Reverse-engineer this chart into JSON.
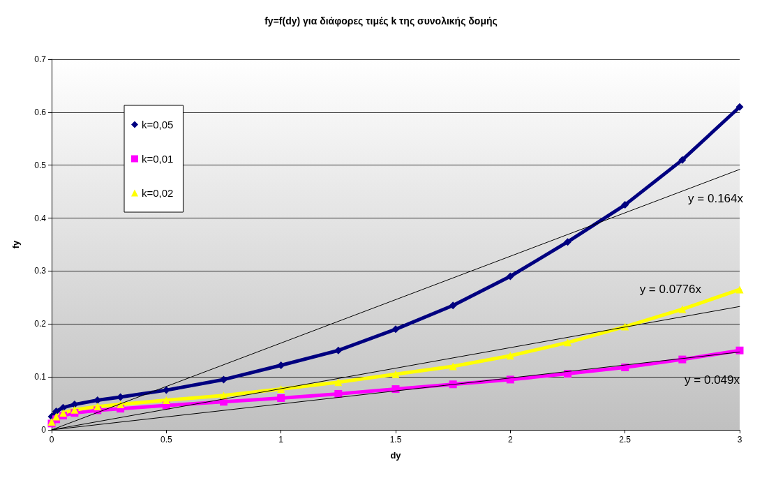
{
  "chart_data": {
    "type": "line",
    "title": "fy=f(dy) για διάφορες τιμές k της συνολικής δομής",
    "xlabel": "dy",
    "ylabel": "fy",
    "x": [
      0,
      0.02,
      0.05,
      0.1,
      0.2,
      0.3,
      0.5,
      0.75,
      1,
      1.25,
      1.5,
      1.75,
      2,
      2.25,
      2.5,
      2.75,
      3
    ],
    "series": [
      {
        "name": "k=0,05",
        "color": "#000080",
        "marker": "diamond",
        "values": [
          0.025,
          0.035,
          0.042,
          0.048,
          0.056,
          0.062,
          0.075,
          0.095,
          0.122,
          0.15,
          0.19,
          0.235,
          0.29,
          0.355,
          0.425,
          0.51,
          0.61
        ]
      },
      {
        "name": "k=0,01",
        "color": "#ff00ff",
        "marker": "square",
        "values": [
          0.012,
          0.02,
          0.027,
          0.032,
          0.037,
          0.04,
          0.046,
          0.053,
          0.06,
          0.068,
          0.077,
          0.086,
          0.095,
          0.106,
          0.118,
          0.133,
          0.15
        ]
      },
      {
        "name": "k=0,02",
        "color": "#ffff00",
        "marker": "triangle",
        "values": [
          0.015,
          0.025,
          0.032,
          0.038,
          0.044,
          0.048,
          0.056,
          0.065,
          0.077,
          0.09,
          0.105,
          0.12,
          0.14,
          0.165,
          0.195,
          0.228,
          0.265
        ]
      },
      {
        "type": "line",
        "color": "#000000",
        "marker": "none",
        "values": [
          0,
          null,
          null,
          null,
          null,
          null,
          null,
          null,
          null,
          null,
          null,
          null,
          null,
          null,
          null,
          null,
          0.492
        ]
      },
      {
        "type": "line",
        "color": "#000000",
        "marker": "none",
        "values": [
          0,
          null,
          null,
          null,
          null,
          null,
          null,
          null,
          null,
          null,
          null,
          null,
          null,
          null,
          null,
          null,
          0.233
        ]
      },
      {
        "type": "line",
        "color": "#000000",
        "marker": "none",
        "values": [
          0,
          null,
          null,
          null,
          null,
          null,
          null,
          null,
          null,
          null,
          null,
          null,
          null,
          null,
          null,
          null,
          0.147
        ]
      }
    ],
    "annotations": [
      "y = 0.164x",
      "y = 0.0776x",
      "y = 0.049x"
    ],
    "xlim": [
      0,
      3
    ],
    "xticks": [
      0,
      0.5,
      1,
      1.5,
      2,
      2.5,
      3
    ],
    "ylim": [
      0,
      0.7
    ],
    "yticks": [
      0,
      0.1,
      0.2,
      0.3,
      0.4,
      0.5,
      0.6,
      0.7
    ],
    "grid": "y",
    "legend": "top left"
  }
}
